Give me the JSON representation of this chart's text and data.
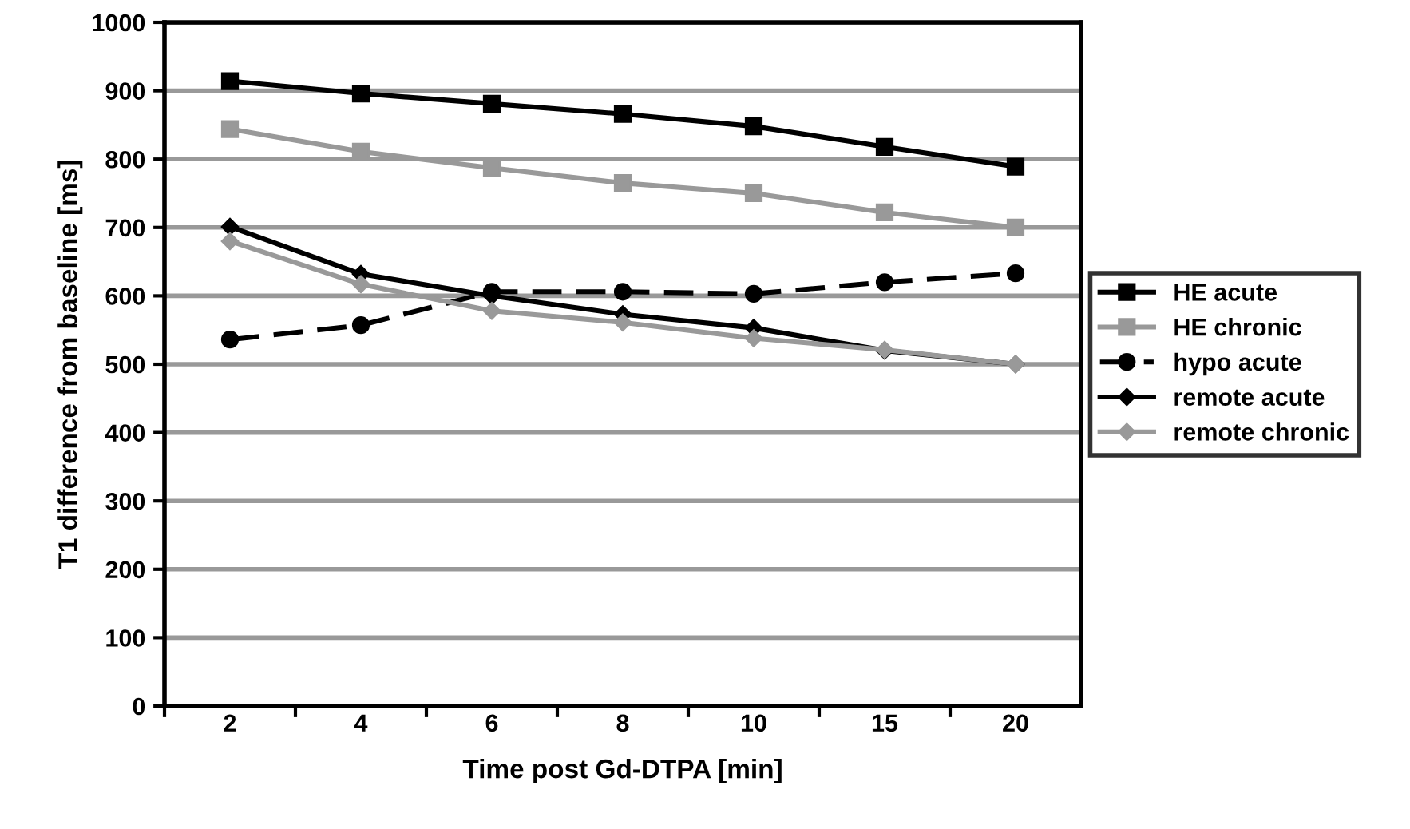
{
  "chart_data": {
    "type": "line",
    "xlabel": "Time post Gd-DTPA [min]",
    "ylabel": "T1 difference from baseline [ms]",
    "categories": [
      "2",
      "4",
      "6",
      "8",
      "10",
      "15",
      "20"
    ],
    "ylim": [
      0,
      1000
    ],
    "yticks": [
      0,
      100,
      200,
      300,
      400,
      500,
      600,
      700,
      800,
      900,
      1000
    ],
    "grid": "y",
    "legend": "right",
    "series": [
      {
        "name": "HE acute",
        "color": "#000000",
        "marker": "square",
        "line_style": "solid",
        "values": [
          914,
          896,
          881,
          866,
          848,
          818,
          789
        ]
      },
      {
        "name": "HE chronic",
        "color": "#999999",
        "marker": "square",
        "line_style": "solid",
        "values": [
          844,
          811,
          787,
          765,
          750,
          722,
          700
        ]
      },
      {
        "name": "hypo acute",
        "color": "#000000",
        "marker": "circle",
        "line_style": "dashed",
        "values": [
          536,
          557,
          606,
          606,
          603,
          620,
          633
        ]
      },
      {
        "name": "remote acute",
        "color": "#000000",
        "marker": "diamond",
        "line_style": "solid",
        "values": [
          701,
          632,
          600,
          573,
          553,
          520,
          500
        ]
      },
      {
        "name": "remote chronic",
        "color": "#999999",
        "marker": "diamond",
        "line_style": "solid",
        "values": [
          680,
          617,
          578,
          561,
          538,
          521,
          500
        ]
      }
    ]
  }
}
